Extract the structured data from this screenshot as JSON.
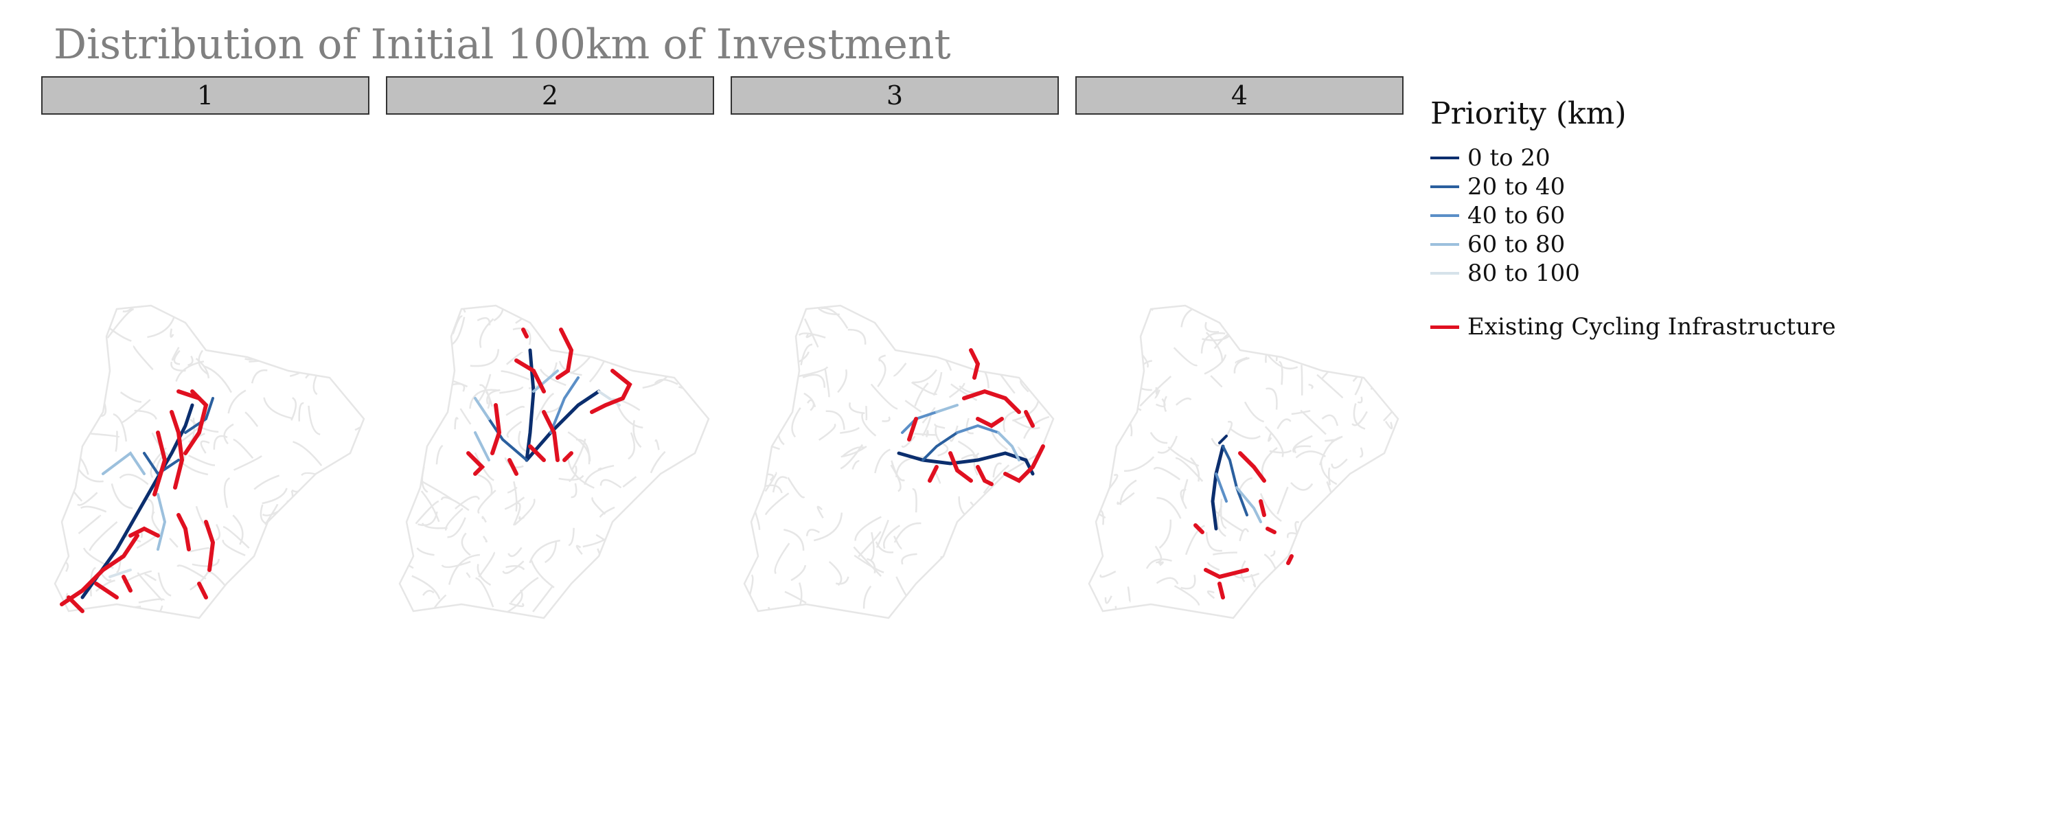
{
  "title": "Distribution of Initial 100km of Investment",
  "panels": [
    {
      "label": "1"
    },
    {
      "label": "2"
    },
    {
      "label": "3"
    },
    {
      "label": "4"
    }
  ],
  "legend": {
    "title": "Priority (km)",
    "items": [
      {
        "label": "0 to 20",
        "color": "#0b2e6e"
      },
      {
        "label": "20 to 40",
        "color": "#2a5f9e"
      },
      {
        "label": "40 to 60",
        "color": "#5b8fc7"
      },
      {
        "label": "60 to 80",
        "color": "#9cc0dd"
      },
      {
        "label": "80 to 100",
        "color": "#d6e2ea"
      }
    ],
    "existing": {
      "label": "Existing Cycling Infrastructure",
      "color": "#e01020"
    }
  },
  "colors": {
    "network": "#e6e6e6",
    "header_bg": "#c0c0c0",
    "title": "#808080"
  }
}
